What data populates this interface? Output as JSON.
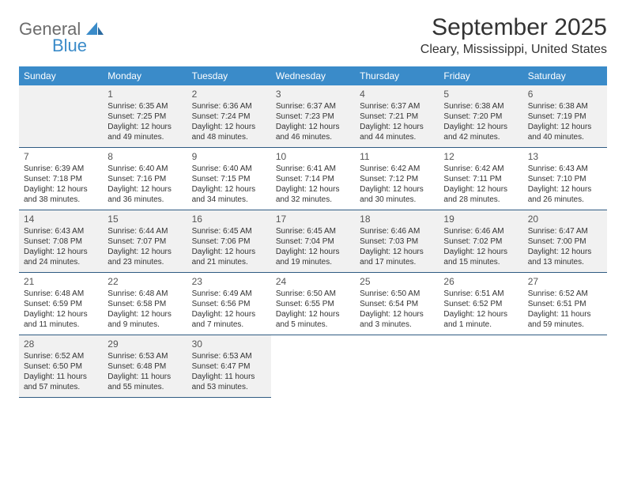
{
  "logo": {
    "line1": "General",
    "line2": "Blue",
    "main_color": "#6c6c6c",
    "accent_color": "#3a8bc9"
  },
  "header": {
    "month_title": "September 2025",
    "location": "Cleary, Mississippi, United States"
  },
  "calendar": {
    "accent_color": "#3a8bc9",
    "border_color": "#2f5b82",
    "shaded_color": "#f1f1f1",
    "background_color": "#ffffff",
    "day_headers": [
      "Sunday",
      "Monday",
      "Tuesday",
      "Wednesday",
      "Thursday",
      "Friday",
      "Saturday"
    ],
    "leading_blanks": 1,
    "days": [
      {
        "n": "1",
        "sunrise": "Sunrise: 6:35 AM",
        "sunset": "Sunset: 7:25 PM",
        "daylight": "Daylight: 12 hours and 49 minutes."
      },
      {
        "n": "2",
        "sunrise": "Sunrise: 6:36 AM",
        "sunset": "Sunset: 7:24 PM",
        "daylight": "Daylight: 12 hours and 48 minutes."
      },
      {
        "n": "3",
        "sunrise": "Sunrise: 6:37 AM",
        "sunset": "Sunset: 7:23 PM",
        "daylight": "Daylight: 12 hours and 46 minutes."
      },
      {
        "n": "4",
        "sunrise": "Sunrise: 6:37 AM",
        "sunset": "Sunset: 7:21 PM",
        "daylight": "Daylight: 12 hours and 44 minutes."
      },
      {
        "n": "5",
        "sunrise": "Sunrise: 6:38 AM",
        "sunset": "Sunset: 7:20 PM",
        "daylight": "Daylight: 12 hours and 42 minutes."
      },
      {
        "n": "6",
        "sunrise": "Sunrise: 6:38 AM",
        "sunset": "Sunset: 7:19 PM",
        "daylight": "Daylight: 12 hours and 40 minutes."
      },
      {
        "n": "7",
        "sunrise": "Sunrise: 6:39 AM",
        "sunset": "Sunset: 7:18 PM",
        "daylight": "Daylight: 12 hours and 38 minutes."
      },
      {
        "n": "8",
        "sunrise": "Sunrise: 6:40 AM",
        "sunset": "Sunset: 7:16 PM",
        "daylight": "Daylight: 12 hours and 36 minutes."
      },
      {
        "n": "9",
        "sunrise": "Sunrise: 6:40 AM",
        "sunset": "Sunset: 7:15 PM",
        "daylight": "Daylight: 12 hours and 34 minutes."
      },
      {
        "n": "10",
        "sunrise": "Sunrise: 6:41 AM",
        "sunset": "Sunset: 7:14 PM",
        "daylight": "Daylight: 12 hours and 32 minutes."
      },
      {
        "n": "11",
        "sunrise": "Sunrise: 6:42 AM",
        "sunset": "Sunset: 7:12 PM",
        "daylight": "Daylight: 12 hours and 30 minutes."
      },
      {
        "n": "12",
        "sunrise": "Sunrise: 6:42 AM",
        "sunset": "Sunset: 7:11 PM",
        "daylight": "Daylight: 12 hours and 28 minutes."
      },
      {
        "n": "13",
        "sunrise": "Sunrise: 6:43 AM",
        "sunset": "Sunset: 7:10 PM",
        "daylight": "Daylight: 12 hours and 26 minutes."
      },
      {
        "n": "14",
        "sunrise": "Sunrise: 6:43 AM",
        "sunset": "Sunset: 7:08 PM",
        "daylight": "Daylight: 12 hours and 24 minutes."
      },
      {
        "n": "15",
        "sunrise": "Sunrise: 6:44 AM",
        "sunset": "Sunset: 7:07 PM",
        "daylight": "Daylight: 12 hours and 23 minutes."
      },
      {
        "n": "16",
        "sunrise": "Sunrise: 6:45 AM",
        "sunset": "Sunset: 7:06 PM",
        "daylight": "Daylight: 12 hours and 21 minutes."
      },
      {
        "n": "17",
        "sunrise": "Sunrise: 6:45 AM",
        "sunset": "Sunset: 7:04 PM",
        "daylight": "Daylight: 12 hours and 19 minutes."
      },
      {
        "n": "18",
        "sunrise": "Sunrise: 6:46 AM",
        "sunset": "Sunset: 7:03 PM",
        "daylight": "Daylight: 12 hours and 17 minutes."
      },
      {
        "n": "19",
        "sunrise": "Sunrise: 6:46 AM",
        "sunset": "Sunset: 7:02 PM",
        "daylight": "Daylight: 12 hours and 15 minutes."
      },
      {
        "n": "20",
        "sunrise": "Sunrise: 6:47 AM",
        "sunset": "Sunset: 7:00 PM",
        "daylight": "Daylight: 12 hours and 13 minutes."
      },
      {
        "n": "21",
        "sunrise": "Sunrise: 6:48 AM",
        "sunset": "Sunset: 6:59 PM",
        "daylight": "Daylight: 12 hours and 11 minutes."
      },
      {
        "n": "22",
        "sunrise": "Sunrise: 6:48 AM",
        "sunset": "Sunset: 6:58 PM",
        "daylight": "Daylight: 12 hours and 9 minutes."
      },
      {
        "n": "23",
        "sunrise": "Sunrise: 6:49 AM",
        "sunset": "Sunset: 6:56 PM",
        "daylight": "Daylight: 12 hours and 7 minutes."
      },
      {
        "n": "24",
        "sunrise": "Sunrise: 6:50 AM",
        "sunset": "Sunset: 6:55 PM",
        "daylight": "Daylight: 12 hours and 5 minutes."
      },
      {
        "n": "25",
        "sunrise": "Sunrise: 6:50 AM",
        "sunset": "Sunset: 6:54 PM",
        "daylight": "Daylight: 12 hours and 3 minutes."
      },
      {
        "n": "26",
        "sunrise": "Sunrise: 6:51 AM",
        "sunset": "Sunset: 6:52 PM",
        "daylight": "Daylight: 12 hours and 1 minute."
      },
      {
        "n": "27",
        "sunrise": "Sunrise: 6:52 AM",
        "sunset": "Sunset: 6:51 PM",
        "daylight": "Daylight: 11 hours and 59 minutes."
      },
      {
        "n": "28",
        "sunrise": "Sunrise: 6:52 AM",
        "sunset": "Sunset: 6:50 PM",
        "daylight": "Daylight: 11 hours and 57 minutes."
      },
      {
        "n": "29",
        "sunrise": "Sunrise: 6:53 AM",
        "sunset": "Sunset: 6:48 PM",
        "daylight": "Daylight: 11 hours and 55 minutes."
      },
      {
        "n": "30",
        "sunrise": "Sunrise: 6:53 AM",
        "sunset": "Sunset: 6:47 PM",
        "daylight": "Daylight: 11 hours and 53 minutes."
      }
    ]
  }
}
